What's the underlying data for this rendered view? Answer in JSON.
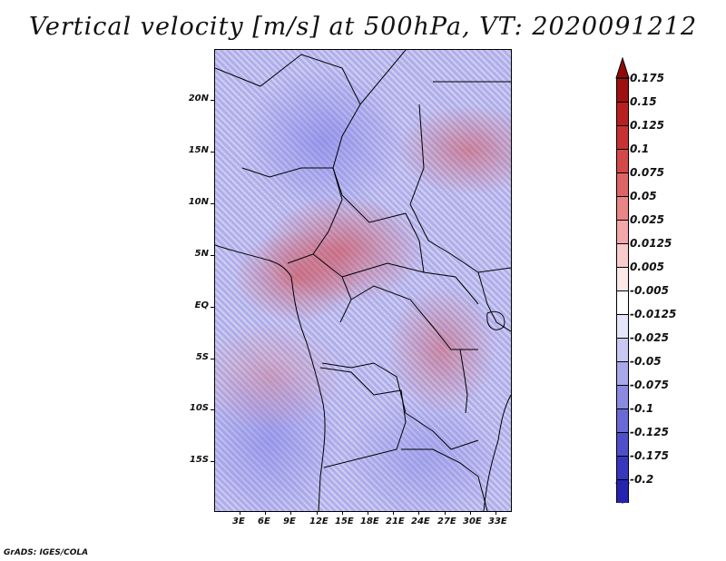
{
  "title": "Vertical velocity [m/s] at 500hPa, VT: 2020091212",
  "map": {
    "lat_labels": [
      "20N",
      "15N",
      "10N",
      "5N",
      "EQ",
      "5S",
      "10S",
      "15S"
    ],
    "lon_labels": [
      "3E",
      "6E",
      "9E",
      "12E",
      "15E",
      "18E",
      "21E",
      "24E",
      "27E",
      "30E",
      "33E"
    ]
  },
  "colorbar": {
    "levels": [
      {
        "label": "0.175",
        "color": "#a01010"
      },
      {
        "label": "0.15",
        "color": "#b82020"
      },
      {
        "label": "0.125",
        "color": "#c83232"
      },
      {
        "label": "0.1",
        "color": "#d44848"
      },
      {
        "label": "0.075",
        "color": "#df6565"
      },
      {
        "label": "0.05",
        "color": "#e88585"
      },
      {
        "label": "0.025",
        "color": "#f2a8a8"
      },
      {
        "label": "0.0125",
        "color": "#f8cccc"
      },
      {
        "label": "0.005",
        "color": "#fce8e8"
      },
      {
        "label": "-0.005",
        "color": "#ffffff"
      },
      {
        "label": "-0.0125",
        "color": "#e6e6fa"
      },
      {
        "label": "-0.025",
        "color": "#c8c8f2"
      },
      {
        "label": "-0.05",
        "color": "#a8a8ea"
      },
      {
        "label": "-0.075",
        "color": "#8a8ae0"
      },
      {
        "label": "-0.1",
        "color": "#6a6ad6"
      },
      {
        "label": "-0.125",
        "color": "#4f4fcb"
      },
      {
        "label": "-0.175",
        "color": "#3636be"
      },
      {
        "label": "-0.2",
        "color": "#2424b0"
      }
    ],
    "bottom_color": "#1a0aa0",
    "top_color": "#900808"
  },
  "footer": "GrADS: IGES/COLA"
}
